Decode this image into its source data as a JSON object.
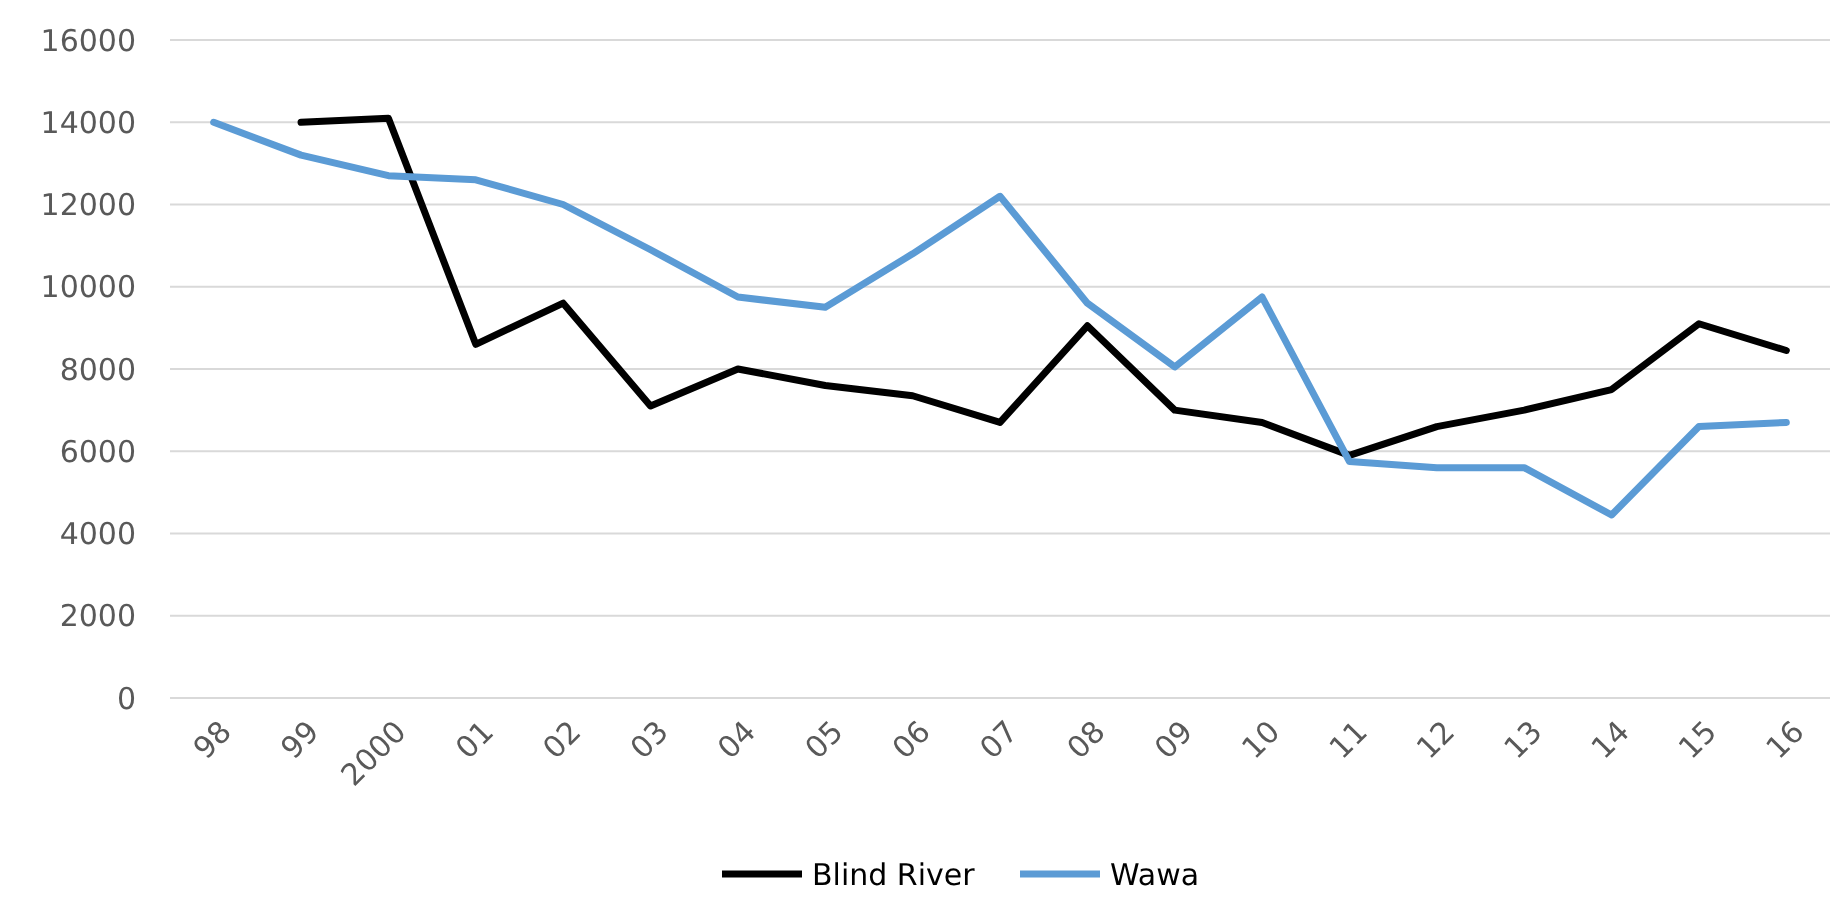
{
  "chart_data": {
    "type": "line",
    "categories": [
      "98",
      "99",
      "2000",
      "01",
      "02",
      "03",
      "04",
      "05",
      "06",
      "07",
      "08",
      "09",
      "10",
      "11",
      "12",
      "13",
      "14",
      "15",
      "16"
    ],
    "series": [
      {
        "name": "Blind River",
        "color": "#000000",
        "values": [
          null,
          14000,
          14100,
          8600,
          9600,
          7100,
          8000,
          7600,
          7350,
          6700,
          9050,
          7000,
          6700,
          5900,
          6600,
          7000,
          7500,
          9100,
          8450
        ]
      },
      {
        "name": "Wawa",
        "color": "#5b9bd5",
        "values": [
          14000,
          13200,
          12700,
          12600,
          12000,
          10900,
          9750,
          9500,
          10800,
          12200,
          9600,
          8050,
          9750,
          5750,
          5600,
          5600,
          4450,
          6600,
          6700
        ]
      }
    ],
    "ylim": [
      0,
      16000
    ],
    "yticks": [
      0,
      2000,
      4000,
      6000,
      8000,
      10000,
      12000,
      14000,
      16000
    ],
    "grid": "y",
    "legend": "bottom",
    "marker": "none",
    "line_style": "solid"
  }
}
